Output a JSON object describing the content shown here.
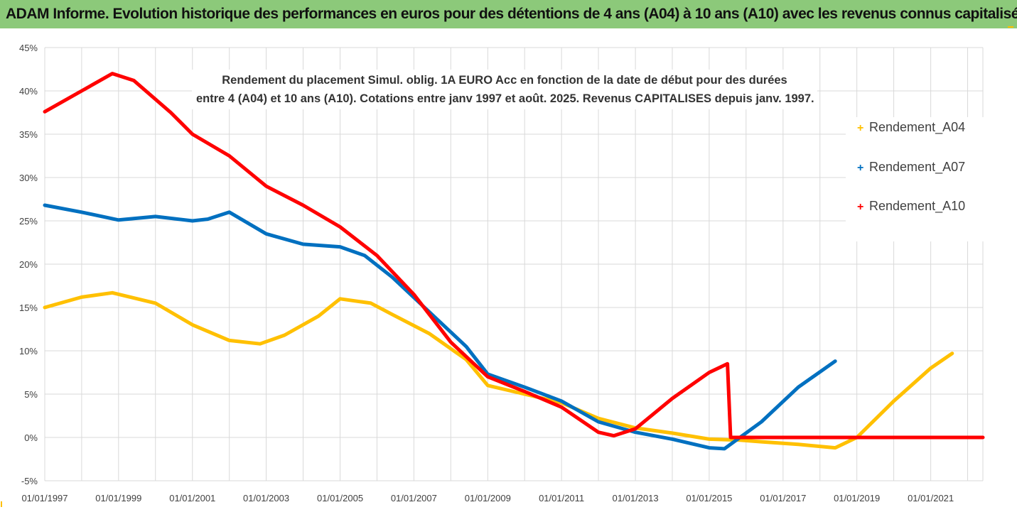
{
  "header": {
    "title": "ADAM Informe. Evolution historique des performances en euros pour des détentions de 4 ans (A04) à 10 ans (A10) avec les revenus connus capitalisés"
  },
  "colors": {
    "header_bg": "#8cc97a",
    "A04": "#ffc000",
    "A07": "#0070c0",
    "A10": "#ff0000",
    "corner": "#ffc000"
  },
  "chart_data": {
    "type": "line",
    "title_lines": [
      "Rendement du placement Simul. oblig. 1A EURO Acc en fonction de la date de début pour des durées",
      "entre 4 (A04) et 10 ans (A10). Cotations entre janv 1997 et août. 2025. Revenus CAPITALISES depuis janv. 1997."
    ],
    "xlabel": "",
    "ylabel": "",
    "x_range": [
      "1997-01-01",
      "2022-06-01"
    ],
    "ylim": [
      -5,
      45
    ],
    "y_ticks": [
      -5,
      0,
      5,
      10,
      15,
      20,
      25,
      30,
      35,
      40,
      45
    ],
    "y_tick_labels": [
      "-5%",
      "0%",
      "5%",
      "10%",
      "15%",
      "20%",
      "25%",
      "30%",
      "35%",
      "40%",
      "45%"
    ],
    "x_tick_labels": [
      "01/01/1997",
      "01/01/1999",
      "01/01/2001",
      "01/01/2003",
      "01/01/2005",
      "01/01/2007",
      "01/01/2009",
      "01/01/2011",
      "01/01/2013",
      "01/01/2015",
      "01/01/2017",
      "01/01/2019",
      "01/01/2021"
    ],
    "grid": true,
    "legend_position": "right",
    "series": [
      {
        "name": "Rendement_A04",
        "x": [
          "1997-01-01",
          "1998-01-01",
          "1998-11-01",
          "2000-01-01",
          "2001-01-01",
          "2002-01-01",
          "2002-11-01",
          "2003-07-01",
          "2004-06-01",
          "2005-01-01",
          "2005-11-01",
          "2006-06-01",
          "2007-06-01",
          "2008-06-01",
          "2009-01-01",
          "2010-01-01",
          "2011-01-01",
          "2012-01-01",
          "2013-01-01",
          "2014-01-01",
          "2015-01-01",
          "2015-11-01",
          "2016-06-01",
          "2017-06-01",
          "2018-06-01",
          "2019-01-01",
          "2020-01-01",
          "2021-01-01",
          "2021-08-01"
        ],
        "values": [
          15.0,
          16.2,
          16.7,
          15.5,
          13.0,
          11.2,
          10.8,
          11.8,
          14.0,
          16.0,
          15.5,
          14.2,
          12.0,
          9.0,
          6.0,
          5.0,
          4.0,
          2.2,
          1.1,
          0.5,
          -0.2,
          -0.3,
          -0.5,
          -0.8,
          -1.2,
          0.0,
          4.2,
          8.0,
          9.7
        ]
      },
      {
        "name": "Rendement_A07",
        "x": [
          "1997-01-01",
          "1998-01-01",
          "1999-01-01",
          "2000-01-01",
          "2001-01-01",
          "2001-06-01",
          "2002-01-01",
          "2003-01-01",
          "2004-01-01",
          "2005-01-01",
          "2005-09-01",
          "2006-06-01",
          "2007-06-01",
          "2008-06-01",
          "2009-01-01",
          "2010-01-01",
          "2011-01-01",
          "2012-01-01",
          "2013-01-01",
          "2014-01-01",
          "2015-01-01",
          "2015-06-01",
          "2016-06-01",
          "2017-06-01",
          "2018-06-01"
        ],
        "values": [
          26.8,
          26.0,
          25.1,
          25.5,
          25.0,
          25.2,
          26.0,
          23.5,
          22.3,
          22.0,
          21.0,
          18.5,
          14.5,
          10.5,
          7.3,
          5.8,
          4.2,
          1.8,
          0.6,
          -0.2,
          -1.2,
          -1.3,
          1.8,
          5.8,
          8.8
        ]
      },
      {
        "name": "Rendement_A10",
        "x": [
          "1997-01-01",
          "1998-01-01",
          "1998-11-01",
          "1999-06-01",
          "2000-06-01",
          "2001-01-01",
          "2002-01-01",
          "2003-01-01",
          "2004-01-01",
          "2005-01-01",
          "2006-01-01",
          "2007-01-01",
          "2008-01-01",
          "2009-01-01",
          "2010-01-01",
          "2011-01-01",
          "2012-01-01",
          "2012-06-01",
          "2013-01-01",
          "2014-01-01",
          "2015-01-01",
          "2015-07-01",
          "2015-08-01",
          "2022-06-01"
        ],
        "values": [
          37.6,
          40.0,
          42.0,
          41.2,
          37.5,
          35.0,
          32.5,
          29.0,
          26.8,
          24.3,
          21.0,
          16.5,
          11.0,
          7.0,
          5.3,
          3.5,
          0.6,
          0.2,
          1.0,
          4.5,
          7.5,
          8.5,
          0.0,
          0.0
        ]
      }
    ]
  }
}
